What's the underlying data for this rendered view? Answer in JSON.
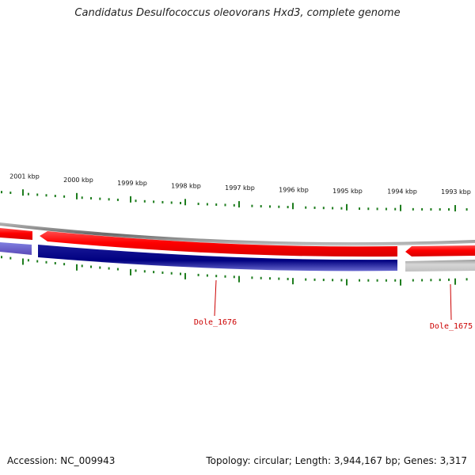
{
  "title": "Candidatus Desulfococcus oleovorans Hxd3, complete genome",
  "accession": "Accession: NC_009943",
  "topology": "Topology: circular; Length: 3,944,167 bp; Genes: 3,317",
  "scale_labels": [
    "2001 kbp",
    "2000 kbp",
    "1999 kbp",
    "1998 kbp",
    "1997 kbp",
    "1996 kbp",
    "1995 kbp",
    "1994 kbp",
    "1993 kbp"
  ],
  "gene_labels": [
    "Dole_1676",
    "Dole_1675"
  ],
  "colors": {
    "forward_cds": "#ff0000",
    "reverse_cds": "#000080",
    "reverse_partial": "#6a5acd",
    "backbone": "#808080",
    "tick": "#1e7d1e",
    "gene_label": "#cc0000"
  }
}
